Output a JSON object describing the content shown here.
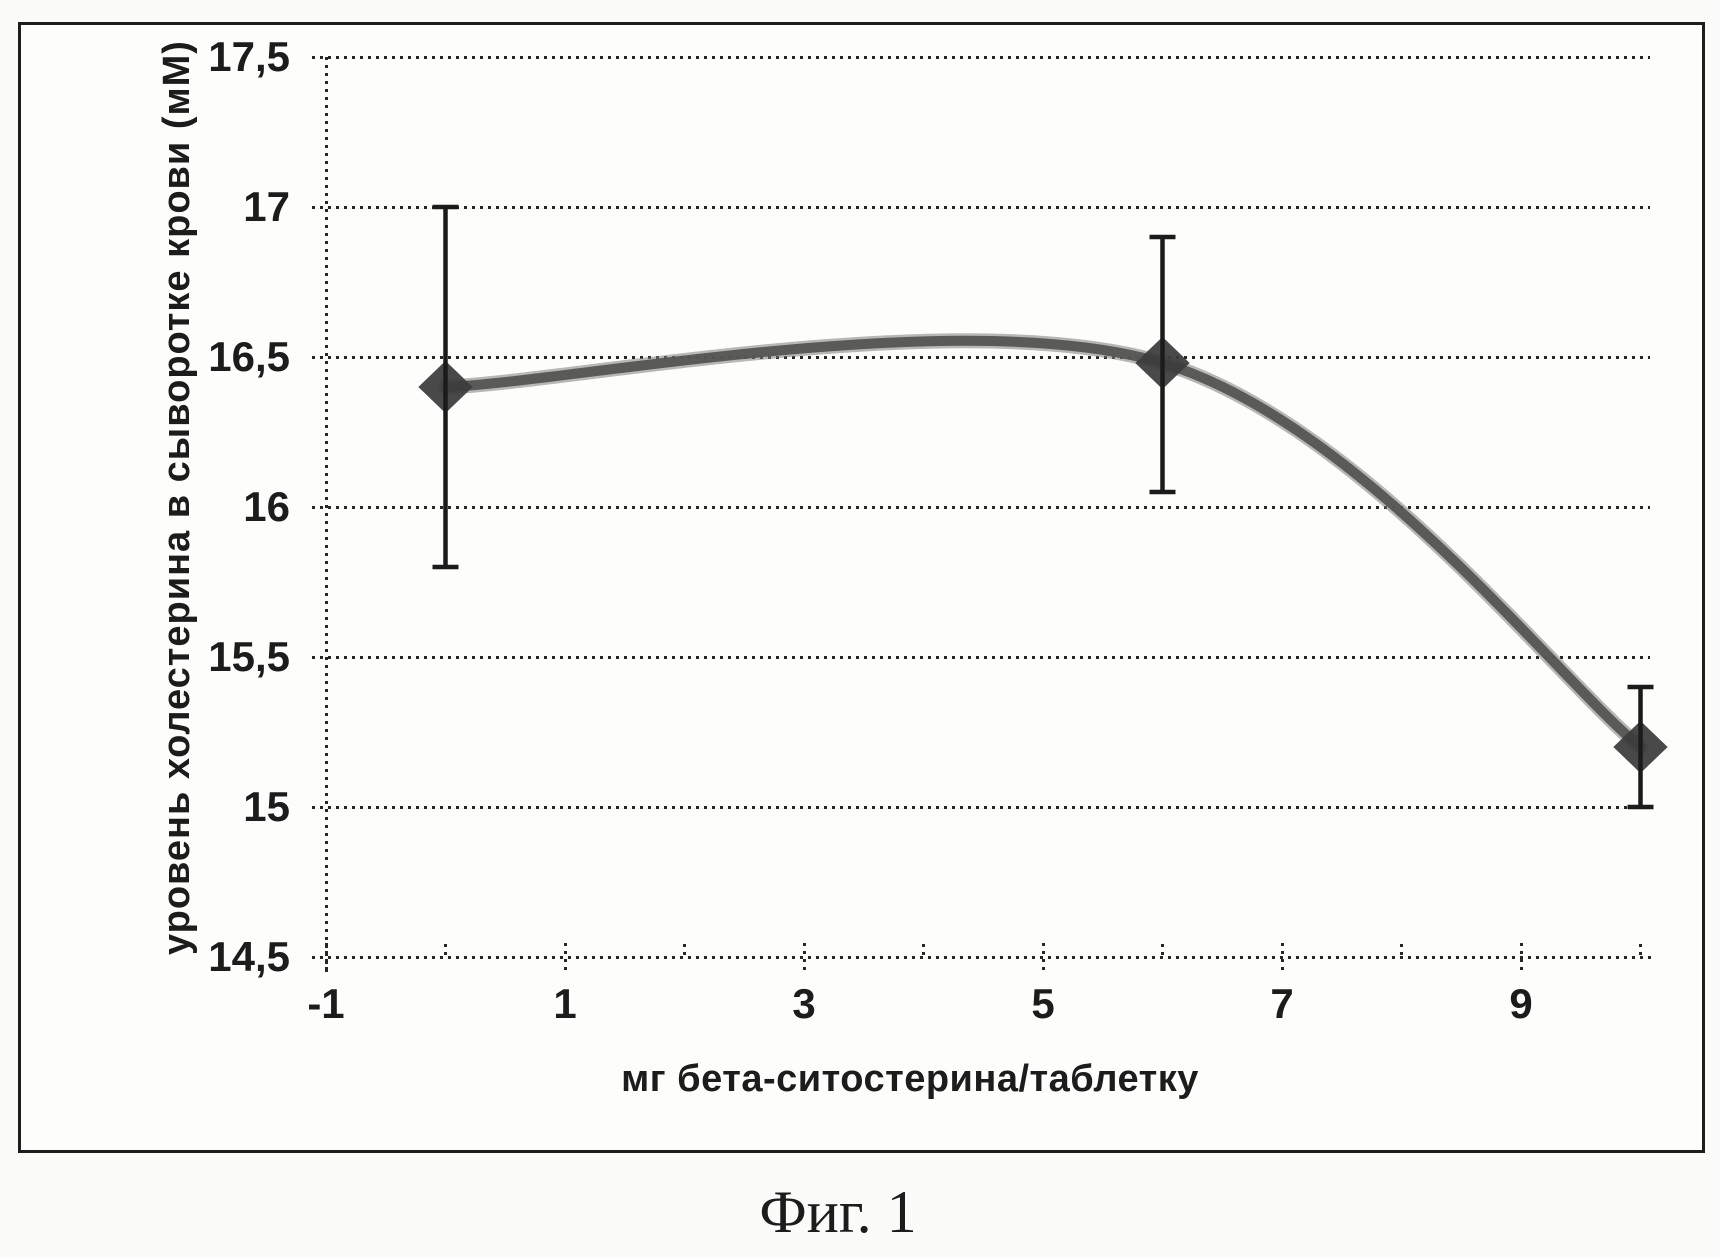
{
  "figure": {
    "caption": "Фиг. 1"
  },
  "chart_data": {
    "type": "line",
    "title": "",
    "xlabel": "мг бета-ситостерина/таблетку",
    "ylabel": "уровень холестерина в сыворотке крови (мМ)",
    "xlim": [
      -1,
      10.1
    ],
    "ylim": [
      14.5,
      17.5
    ],
    "x_ticks": {
      "values": [
        -1,
        1,
        3,
        5,
        7,
        9
      ],
      "labels": [
        "-1",
        "1",
        "3",
        "5",
        "7",
        "9"
      ]
    },
    "x_minor_ticks": [
      0,
      2,
      4,
      6,
      8,
      10
    ],
    "y_ticks": {
      "values": [
        14.5,
        15,
        15.5,
        16,
        16.5,
        17,
        17.5
      ],
      "labels": [
        "14,5",
        "15",
        "15,5",
        "16",
        "16,5",
        "17",
        "17,5"
      ]
    },
    "grid": "horizontal-dotted",
    "legend": "none",
    "line_style": "smooth",
    "marker": "diamond",
    "series": [
      {
        "points": [
          {
            "x": 0,
            "y": 16.4,
            "err_low": 15.8,
            "err_high": 17.0
          },
          {
            "x": 6,
            "y": 16.48,
            "err_low": 16.05,
            "err_high": 16.9
          },
          {
            "x": 10,
            "y": 15.2,
            "err_low": 15.0,
            "err_high": 15.4
          }
        ]
      }
    ],
    "colors": {
      "ink": "#1c1c1c",
      "curve": "#545454",
      "curve_halo": "#7d7d7d",
      "marker": "#3c3c3c",
      "error_bar": "#1b1b1b",
      "paper": "#fbfbf9"
    }
  }
}
